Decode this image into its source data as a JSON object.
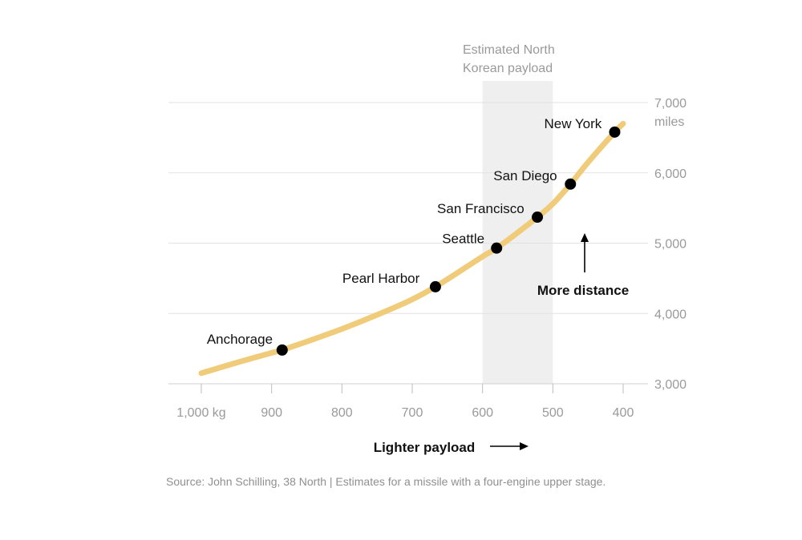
{
  "chart_data": {
    "type": "line",
    "x_axis": {
      "reversed": true,
      "range": [
        1000,
        400
      ],
      "ticks": [
        {
          "value": 1000,
          "label": "1,000 kg"
        },
        {
          "value": 900,
          "label": "900"
        },
        {
          "value": 800,
          "label": "800"
        },
        {
          "value": 700,
          "label": "700"
        },
        {
          "value": 600,
          "label": "600"
        },
        {
          "value": 500,
          "label": "500"
        },
        {
          "value": 400,
          "label": "400"
        }
      ]
    },
    "y_axis": {
      "range": [
        3000,
        7000
      ],
      "ticks": [
        {
          "value": 7000,
          "label": "7,000"
        },
        {
          "value": 6000,
          "label": "6,000"
        },
        {
          "value": 5000,
          "label": "5,000"
        },
        {
          "value": 4000,
          "label": "4,000"
        },
        {
          "value": 3000,
          "label": "3,000"
        }
      ],
      "unit_label": "miles"
    },
    "grid": true,
    "curve": {
      "color": "#f0cb7a",
      "x": [
        1000,
        950,
        900,
        885,
        850,
        800,
        750,
        700,
        667,
        620,
        600,
        580,
        550,
        522,
        500,
        475,
        450,
        412,
        400
      ],
      "y": [
        3150,
        3300,
        3440,
        3480,
        3600,
        3780,
        3980,
        4200,
        4380,
        4680,
        4810,
        4930,
        5150,
        5370,
        5560,
        5840,
        6150,
        6580,
        6700
      ]
    },
    "points": [
      {
        "name": "Anchorage",
        "x": 885,
        "y": 3480
      },
      {
        "name": "Pearl Harbor",
        "x": 667,
        "y": 4380
      },
      {
        "name": "Seattle",
        "x": 580,
        "y": 4930
      },
      {
        "name": "San Francisco",
        "x": 522,
        "y": 5370
      },
      {
        "name": "San Diego",
        "x": 475,
        "y": 5840
      },
      {
        "name": "New York",
        "x": 412,
        "y": 6580
      }
    ],
    "shaded_band": {
      "x_range": [
        600,
        500
      ],
      "label_lines": [
        "Estimated North",
        "Korean payload"
      ],
      "color": "#efefef"
    },
    "annotations": {
      "x_direction": "Lighter payload",
      "y_direction": "More distance"
    },
    "source": "Source: John Schilling, 38 North | Estimates for a missile with a four-engine upper stage."
  }
}
